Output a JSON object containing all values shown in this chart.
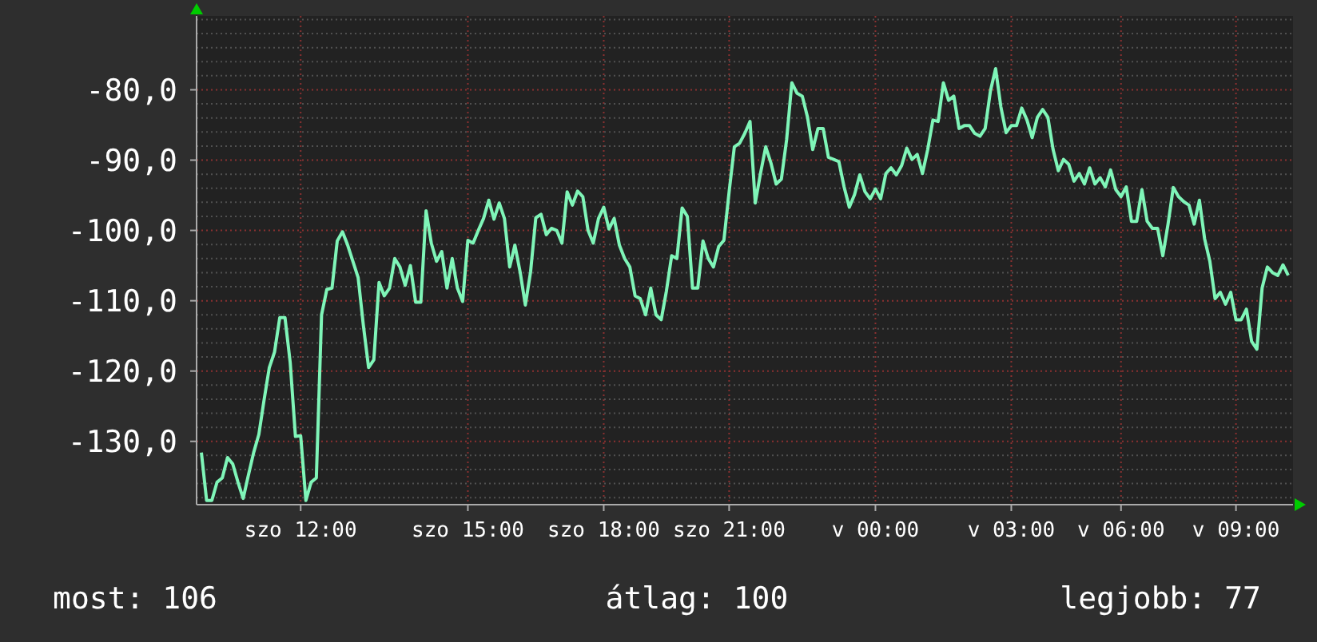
{
  "chart_data": {
    "type": "line",
    "categories": [
      null,
      null,
      null,
      null,
      null,
      null,
      null,
      null,
      null,
      null,
      null,
      null,
      null,
      null,
      null,
      null,
      null,
      null,
      null,
      "szo 12:00",
      null,
      null,
      null,
      null,
      null,
      null,
      null,
      null,
      null,
      null,
      null,
      null,
      null,
      null,
      null,
      null,
      null,
      null,
      null,
      null,
      null,
      null,
      null,
      null,
      null,
      null,
      null,
      null,
      null,
      null,
      null,
      "szo 15:00",
      null,
      null,
      null,
      null,
      null,
      null,
      null,
      null,
      null,
      null,
      null,
      null,
      null,
      null,
      null,
      null,
      null,
      null,
      null,
      null,
      null,
      null,
      null,
      null,
      null,
      "szo 18:00",
      null,
      null,
      null,
      null,
      null,
      null,
      null,
      null,
      null,
      null,
      null,
      null,
      null,
      null,
      null,
      null,
      null,
      null,
      null,
      null,
      null,
      null,
      null,
      "szo 21:00",
      null,
      null,
      null,
      null,
      null,
      null,
      null,
      null,
      null,
      null,
      null,
      null,
      null,
      null,
      null,
      null,
      null,
      null,
      null,
      null,
      null,
      null,
      null,
      null,
      null,
      null,
      null,
      "v 00:00",
      null,
      null,
      null,
      null,
      null,
      null,
      null,
      null,
      null,
      null,
      null,
      null,
      null,
      null,
      null,
      null,
      null,
      null,
      null,
      null,
      null,
      null,
      null,
      null,
      null,
      "v 03:00",
      null,
      null,
      null,
      null,
      null,
      null,
      null,
      null,
      null,
      null,
      null,
      null,
      null,
      null,
      null,
      null,
      null,
      null,
      null,
      null,
      "v 06:00",
      null,
      null,
      null,
      null,
      null,
      null,
      null,
      null,
      null,
      null,
      null,
      null,
      null,
      null,
      null,
      null,
      null,
      null,
      null,
      null,
      null,
      "v 09:00",
      null,
      null,
      null,
      null,
      null,
      null,
      null,
      null,
      null,
      null
    ],
    "series": [
      {
        "color": "#7ff5b8",
        "values": [
          -131.6,
          -138.4,
          -138.4,
          -135.8,
          -135.2,
          -132.3,
          -133.2,
          -135.8,
          -138.1,
          -134.8,
          -131.6,
          -129,
          -124.1,
          -119.5,
          -117.3,
          -112.4,
          -112.4,
          -118.8,
          -129.3,
          -129.2,
          -138.4,
          -135.8,
          -135.2,
          -112,
          -108.4,
          -108.2,
          -101.5,
          -100.2,
          -102.1,
          -104.4,
          -106.7,
          -113.5,
          -119.5,
          -118.4,
          -107.4,
          -109.3,
          -108.2,
          -104,
          -105.2,
          -107.8,
          -105,
          -110.2,
          -110.2,
          -97.2,
          -101.8,
          -104.4,
          -103,
          -108.2,
          -104,
          -108.2,
          -110.1,
          -101.4,
          -101.8,
          -100,
          -98.3,
          -95.7,
          -98.4,
          -96.1,
          -98.3,
          -105.2,
          -102.1,
          -105.9,
          -110.6,
          -105.9,
          -98.2,
          -97.7,
          -100.6,
          -99.7,
          -100,
          -101.8,
          -94.5,
          -96.4,
          -94.4,
          -95.2,
          -100,
          -101.8,
          -98.3,
          -96.7,
          -99.8,
          -98.3,
          -102.1,
          -104,
          -105.2,
          -109.3,
          -109.7,
          -112,
          -108.2,
          -112,
          -112.7,
          -108.6,
          -103.6,
          -104,
          -96.8,
          -98,
          -108.2,
          -108.2,
          -101.5,
          -104,
          -105.2,
          -102.3,
          -101.4,
          -94.5,
          -88.1,
          -87.6,
          -86.2,
          -84.5,
          -96.1,
          -91.9,
          -88.1,
          -90.4,
          -93.4,
          -92.7,
          -87.1,
          -79,
          -80.5,
          -80.9,
          -83.9,
          -88.5,
          -85.5,
          -85.5,
          -89.6,
          -89.9,
          -90.2,
          -93.8,
          -96.7,
          -94.9,
          -92.1,
          -94.5,
          -95.5,
          -94.1,
          -95.5,
          -91.9,
          -91.1,
          -92.1,
          -90.8,
          -88.3,
          -89.9,
          -89.2,
          -91.9,
          -88.5,
          -84.3,
          -84.5,
          -79,
          -81.5,
          -80.9,
          -85.5,
          -85.1,
          -85.1,
          -86.2,
          -86.6,
          -85.5,
          -80.2,
          -77,
          -82.4,
          -86.1,
          -85.1,
          -85.1,
          -82.6,
          -84.3,
          -86.8,
          -83.9,
          -82.8,
          -83.9,
          -88.5,
          -91.5,
          -89.9,
          -90.6,
          -93,
          -91.9,
          -93.4,
          -91.1,
          -93.4,
          -92.5,
          -93.8,
          -91.4,
          -94.2,
          -95.2,
          -93.8,
          -98.7,
          -98.7,
          -94.2,
          -98.7,
          -99.7,
          -99.7,
          -103.6,
          -99.1,
          -93.9,
          -95.2,
          -95.9,
          -96.4,
          -99.1,
          -95.7,
          -101.2,
          -104.4,
          -109.7,
          -108.8,
          -110.5,
          -108.8,
          -112.7,
          -112.7,
          -111.2,
          -115.8,
          -116.9,
          -108.2,
          -105.2,
          -106,
          -106.4,
          -104.9,
          -106.4
        ]
      }
    ],
    "ylim": [
      -139,
      -69.5
    ],
    "yticks": [
      {
        "value": -138,
        "label": null
      },
      {
        "value": -136,
        "label": null
      },
      {
        "value": -134,
        "label": null
      },
      {
        "value": -132,
        "label": null
      },
      {
        "value": -130,
        "label": "-130,0"
      },
      {
        "value": -128,
        "label": null
      },
      {
        "value": -126,
        "label": null
      },
      {
        "value": -124,
        "label": null
      },
      {
        "value": -122,
        "label": null
      },
      {
        "value": -120,
        "label": "-120,0"
      },
      {
        "value": -118,
        "label": null
      },
      {
        "value": -116,
        "label": null
      },
      {
        "value": -114,
        "label": null
      },
      {
        "value": -112,
        "label": null
      },
      {
        "value": -110,
        "label": "-110,0"
      },
      {
        "value": -108,
        "label": null
      },
      {
        "value": -106,
        "label": null
      },
      {
        "value": -104,
        "label": null
      },
      {
        "value": -102,
        "label": null
      },
      {
        "value": -100,
        "label": "-100,0"
      },
      {
        "value": -98,
        "label": null
      },
      {
        "value": -96,
        "label": null
      },
      {
        "value": -94,
        "label": null
      },
      {
        "value": -92,
        "label": null
      },
      {
        "value": -90,
        "label": "-90,0"
      },
      {
        "value": -88,
        "label": null
      },
      {
        "value": -86,
        "label": null
      },
      {
        "value": -84,
        "label": null
      },
      {
        "value": -82,
        "label": null
      },
      {
        "value": -80,
        "label": "-80,0"
      },
      {
        "value": -78,
        "label": null
      },
      {
        "value": -76,
        "label": null
      },
      {
        "value": -74,
        "label": null
      },
      {
        "value": -72,
        "label": null
      },
      {
        "value": -70,
        "label": null
      }
    ],
    "grid": true,
    "annotations": [
      "most: 106",
      "átlag: 100",
      "legjobb: 77"
    ]
  }
}
